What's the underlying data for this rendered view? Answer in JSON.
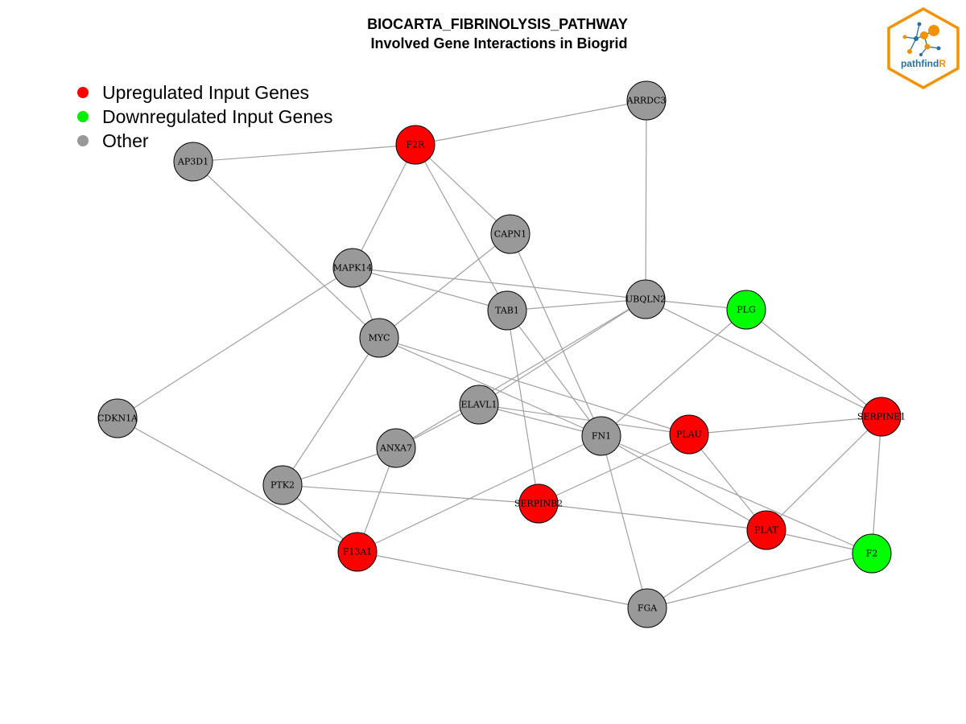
{
  "title": {
    "line1": "BIOCARTA_FIBRINOLYSIS_PATHWAY",
    "line2": "Involved Gene Interactions in Biogrid"
  },
  "legend": [
    {
      "label": "Upregulated Input Genes",
      "color": "#ff0000"
    },
    {
      "label": "Downregulated Input Genes",
      "color": "#00ee00"
    },
    {
      "label": "Other",
      "color": "#999999"
    }
  ],
  "colors": {
    "up": "#ff0000",
    "down": "#00ff00",
    "other": "#999999",
    "edge": "#a0a0a0"
  },
  "logo": {
    "text_main": "pathfind",
    "text_accent": "R",
    "border_color": "#f39200",
    "accent_color": "#f39200",
    "text_color": "#2a6f97"
  },
  "nodes": [
    {
      "id": "ARRDC3",
      "type": "other"
    },
    {
      "id": "F2R",
      "type": "up"
    },
    {
      "id": "AP3D1",
      "type": "other"
    },
    {
      "id": "CAPN1",
      "type": "other"
    },
    {
      "id": "MAPK14",
      "type": "other"
    },
    {
      "id": "UBQLN2",
      "type": "other"
    },
    {
      "id": "PLG",
      "type": "down"
    },
    {
      "id": "TAB1",
      "type": "other"
    },
    {
      "id": "MYC",
      "type": "other"
    },
    {
      "id": "CDKN1A",
      "type": "other"
    },
    {
      "id": "ELAVL1",
      "type": "other"
    },
    {
      "id": "SERPINE1",
      "type": "up"
    },
    {
      "id": "FN1",
      "type": "other"
    },
    {
      "id": "PLAU",
      "type": "up"
    },
    {
      "id": "ANXA7",
      "type": "other"
    },
    {
      "id": "PTK2",
      "type": "other"
    },
    {
      "id": "SERPINB2",
      "type": "up"
    },
    {
      "id": "PLAT",
      "type": "up"
    },
    {
      "id": "F2",
      "type": "down"
    },
    {
      "id": "F13A1",
      "type": "up"
    },
    {
      "id": "FGA",
      "type": "other"
    }
  ],
  "edges": [
    [
      "AP3D1",
      "F2R"
    ],
    [
      "F2R",
      "ARRDC3"
    ],
    [
      "ARRDC3",
      "UBQLN2"
    ],
    [
      "F2R",
      "MAPK14"
    ],
    [
      "F2R",
      "CAPN1"
    ],
    [
      "F2R",
      "TAB1"
    ],
    [
      "AP3D1",
      "MYC"
    ],
    [
      "CAPN1",
      "MYC"
    ],
    [
      "CAPN1",
      "FN1"
    ],
    [
      "MAPK14",
      "UBQLN2"
    ],
    [
      "MAPK14",
      "TAB1"
    ],
    [
      "MAPK14",
      "MYC"
    ],
    [
      "MAPK14",
      "CDKN1A"
    ],
    [
      "TAB1",
      "UBQLN2"
    ],
    [
      "TAB1",
      "FN1"
    ],
    [
      "TAB1",
      "SERPINB2"
    ],
    [
      "UBQLN2",
      "PLG"
    ],
    [
      "UBQLN2",
      "SERPINE1"
    ],
    [
      "UBQLN2",
      "ELAVL1"
    ],
    [
      "UBQLN2",
      "ANXA7"
    ],
    [
      "PLG",
      "SERPINE1"
    ],
    [
      "PLG",
      "FN1"
    ],
    [
      "MYC",
      "FN1"
    ],
    [
      "MYC",
      "PLAU"
    ],
    [
      "MYC",
      "PTK2"
    ],
    [
      "ELAVL1",
      "FN1"
    ],
    [
      "ELAVL1",
      "PLAU"
    ],
    [
      "ELAVL1",
      "ANXA7"
    ],
    [
      "PTK2",
      "ANXA7"
    ],
    [
      "PTK2",
      "SERPINB2"
    ],
    [
      "PTK2",
      "F13A1"
    ],
    [
      "ANXA7",
      "F13A1"
    ],
    [
      "CDKN1A",
      "F13A1"
    ],
    [
      "F13A1",
      "FN1"
    ],
    [
      "F13A1",
      "FGA"
    ],
    [
      "FN1",
      "FGA"
    ],
    [
      "FN1",
      "PLAT"
    ],
    [
      "FN1",
      "F2"
    ],
    [
      "PLAU",
      "SERPINE1"
    ],
    [
      "PLAU",
      "PLAT"
    ],
    [
      "PLAU",
      "SERPINB2"
    ],
    [
      "SERPINE1",
      "PLAT"
    ],
    [
      "SERPINE1",
      "F2"
    ],
    [
      "SERPINB2",
      "PLAT"
    ],
    [
      "PLAT",
      "F2"
    ],
    [
      "PLAT",
      "FGA"
    ],
    [
      "F2",
      "FGA"
    ]
  ]
}
